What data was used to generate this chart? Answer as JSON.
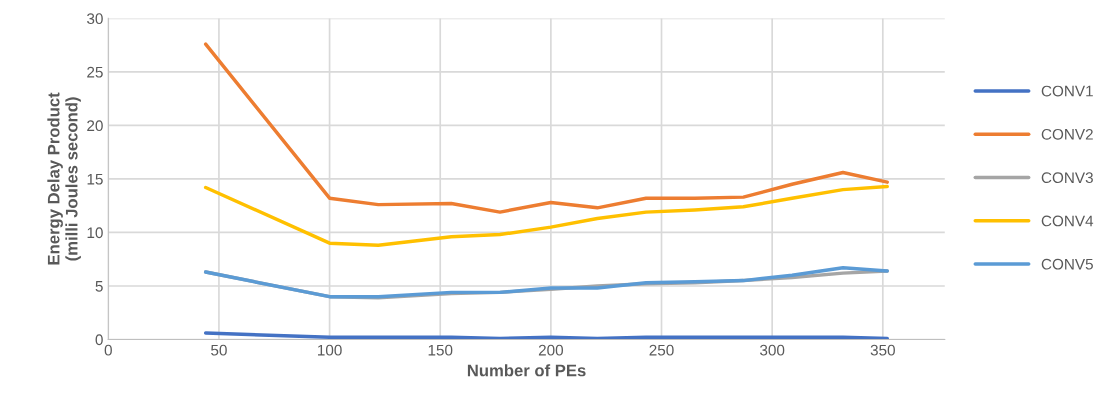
{
  "chart_data": {
    "type": "line",
    "xlabel": "Number of PEs",
    "ylabel": "Energy Delay Product\n(milli Joules second)",
    "x": [
      44,
      100,
      122,
      155,
      177,
      200,
      221,
      243,
      265,
      287,
      309,
      332,
      352
    ],
    "series": [
      {
        "name": "CONV1",
        "color": "#4472c4",
        "values": [
          0.6,
          0.2,
          0.2,
          0.2,
          0.1,
          0.2,
          0.1,
          0.2,
          0.2,
          0.2,
          0.2,
          0.2,
          0.1
        ]
      },
      {
        "name": "CONV2",
        "color": "#ed7d31",
        "values": [
          27.6,
          13.2,
          12.6,
          12.7,
          11.9,
          12.8,
          12.3,
          13.2,
          13.2,
          13.3,
          14.5,
          15.6,
          14.7
        ]
      },
      {
        "name": "CONV3",
        "color": "#a5a5a5",
        "values": [
          6.3,
          4.0,
          3.9,
          4.3,
          4.4,
          4.7,
          5.0,
          5.2,
          5.3,
          5.5,
          5.8,
          6.2,
          6.4
        ]
      },
      {
        "name": "CONV4",
        "color": "#ffc000",
        "values": [
          14.2,
          9.0,
          8.8,
          9.6,
          9.8,
          10.5,
          11.3,
          11.9,
          12.1,
          12.4,
          13.2,
          14.0,
          14.3
        ]
      },
      {
        "name": "CONV5",
        "color": "#5b9bd5",
        "values": [
          6.3,
          4.0,
          4.0,
          4.4,
          4.4,
          4.8,
          4.8,
          5.3,
          5.4,
          5.5,
          6.0,
          6.7,
          6.4
        ]
      }
    ],
    "xlim": [
      0,
      378
    ],
    "xticks": [
      0,
      50,
      100,
      150,
      200,
      250,
      300,
      350
    ],
    "ylim": [
      0,
      30
    ],
    "yticks": [
      0,
      5,
      10,
      15,
      20,
      25,
      30
    ],
    "grid": true,
    "legend": "right",
    "marker": "none",
    "line_style": "solid"
  }
}
